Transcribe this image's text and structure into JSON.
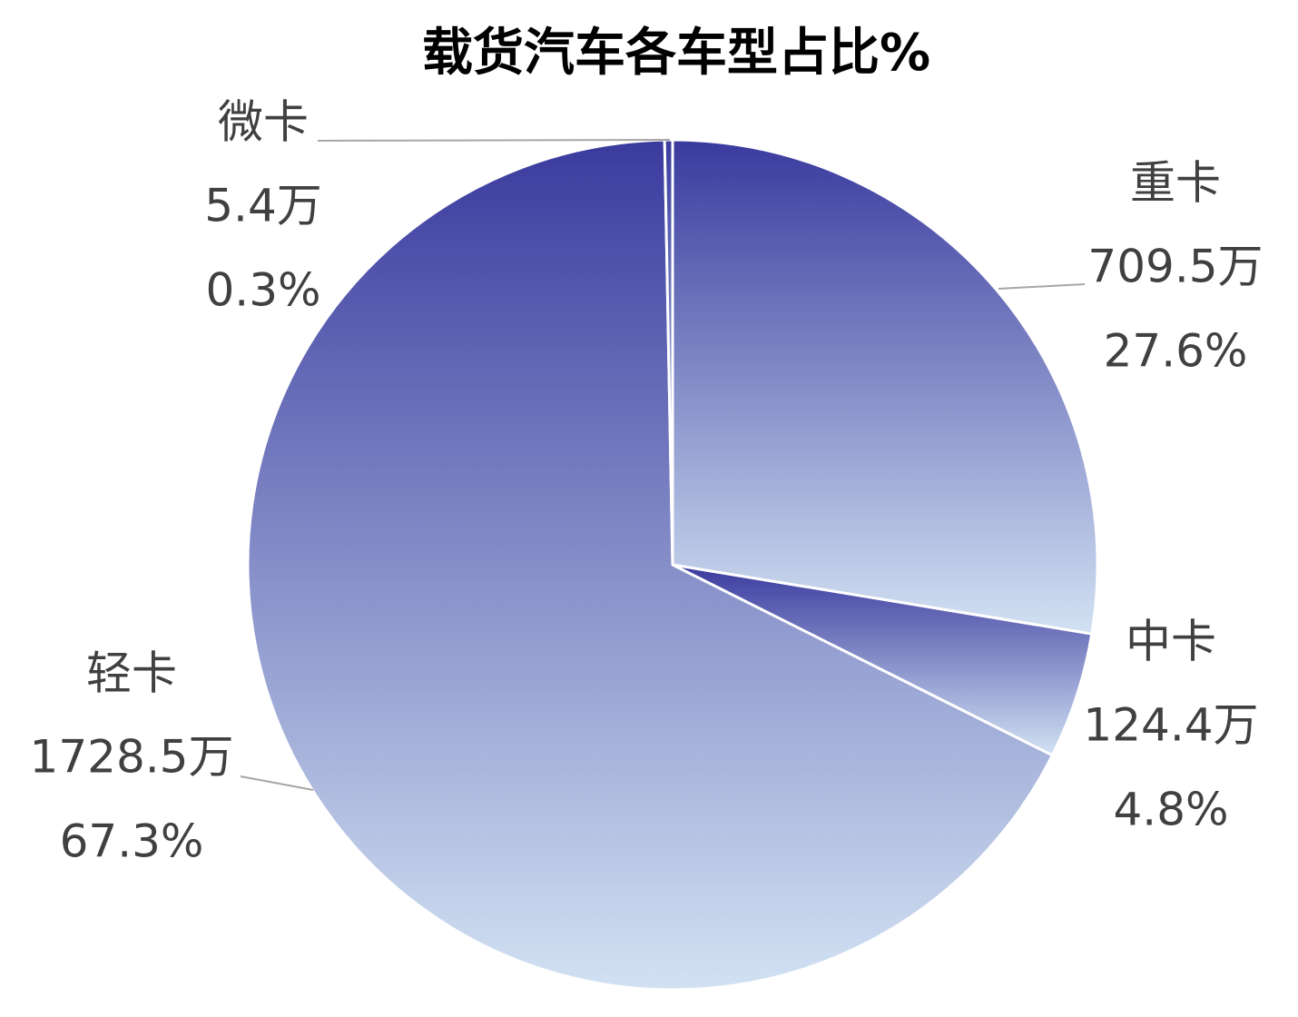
{
  "chart_data": {
    "type": "pie",
    "title": "载货汽车各车型占比%",
    "categories": [
      "重卡",
      "中卡",
      "轻卡",
      "微卡"
    ],
    "values": [
      27.6,
      4.8,
      67.3,
      0.3
    ],
    "value_labels": [
      "27.6%",
      "4.8%",
      "67.3%",
      "0.3%"
    ],
    "counts": [
      709.5,
      124.4,
      1728.5,
      5.4
    ],
    "count_labels": [
      "709.5万",
      "124.4万",
      "1728.5万",
      "5.4万"
    ],
    "gradient": [
      "#3a3a9e",
      "#d2e2f3"
    ]
  }
}
